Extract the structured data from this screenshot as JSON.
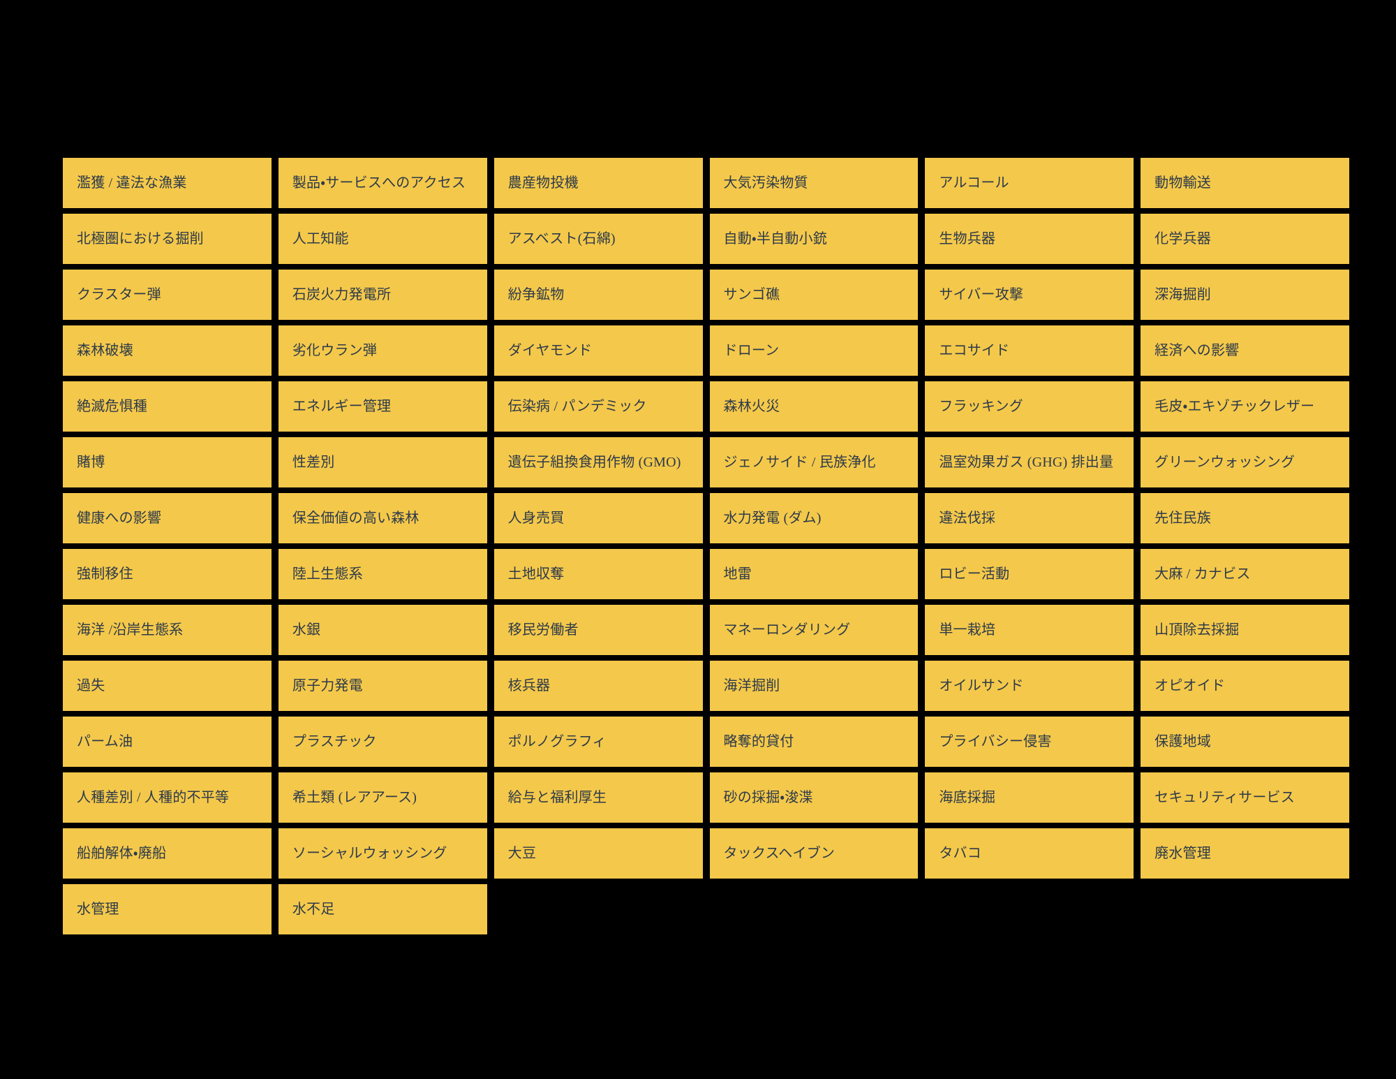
{
  "colors": {
    "page_background": "#000000",
    "tile_background": "#F4C84A",
    "tile_text": "#2D3A4A"
  },
  "grid": {
    "columns": 6,
    "tile_count": 80
  },
  "topics": [
    "濫獲 / 違法な漁業",
    "製品・サービスへのアクセス",
    "農産物投機",
    "大気汚染物質",
    "アルコール",
    "動物輸送",
    "北極圏における掘削",
    "人工知能",
    "アスベスト(石綿)",
    "自動・半自動小銃",
    "生物兵器",
    "化学兵器",
    "クラスター弾",
    "石炭火力発電所",
    "紛争鉱物",
    "サンゴ礁",
    "サイバー攻撃",
    "深海掘削",
    "森林破壊",
    "劣化ウラン弾",
    "ダイヤモンド",
    "ドローン",
    "エコサイド",
    "経済への影響",
    "絶滅危惧種",
    "エネルギー管理",
    "伝染病 / パンデミック",
    "森林火災",
    "フラッキング",
    "毛皮・エキゾチックレザー",
    "賭博",
    "性差別",
    "遺伝子組換食用作物 (GMO)",
    "ジェノサイド / 民族浄化",
    "温室効果ガス (GHG) 排出量",
    "グリーンウォッシング",
    "健康への影響",
    "保全価値の高い森林",
    "人身売買",
    "水力発電 (ダム)",
    "違法伐採",
    "先住民族",
    "強制移住",
    "陸上生態系",
    "土地収奪",
    "地雷",
    "ロビー活動",
    "大麻 / カナビス",
    "海洋 /沿岸生態系",
    "水銀",
    "移民労働者",
    "マネーロンダリング",
    "単一栽培",
    "山頂除去採掘",
    "過失",
    "原子力発電",
    "核兵器",
    "海洋掘削",
    "オイルサンド",
    "オピオイド",
    "パーム油",
    "プラスチック",
    "ポルノグラフィ",
    "略奪的貸付",
    "プライバシー侵害",
    "保護地域",
    "人種差別 / 人種的不平等",
    "希土類 (レアアース)",
    "給与と福利厚生",
    "砂の採掘・浚渫",
    "海底採掘",
    "セキュリティサービス",
    "船舶解体・廃船",
    "ソーシャルウォッシング",
    "大豆",
    "タックスヘイブン",
    "タバコ",
    "廃水管理",
    "水管理",
    "水不足"
  ]
}
